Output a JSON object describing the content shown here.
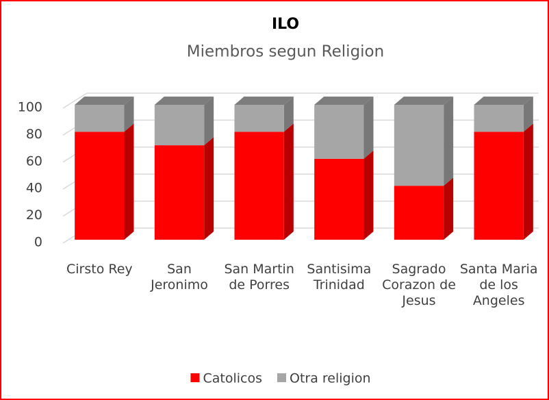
{
  "chart_data": {
    "type": "bar3d_stacked",
    "title": "ILO",
    "subtitle": "Miembros segun Religion",
    "categories": [
      "Cirsto Rey",
      "San Jeronimo",
      "San Martin de Porres",
      "Santisima Trinidad",
      "Sagrado Corazon de Jesus",
      "Santa Maria de los Angeles"
    ],
    "series": [
      {
        "name": "Catolicos",
        "color": "#ff0000",
        "values": [
          80,
          70,
          80,
          60,
          40,
          80
        ]
      },
      {
        "name": "Otra religion",
        "color": "#a6a6a6",
        "values": [
          20,
          30,
          20,
          40,
          60,
          20
        ]
      }
    ],
    "ylim": [
      0,
      100
    ],
    "yticks": [
      0,
      20,
      40,
      60,
      80,
      100
    ],
    "grid": true,
    "legend": "bottom"
  }
}
